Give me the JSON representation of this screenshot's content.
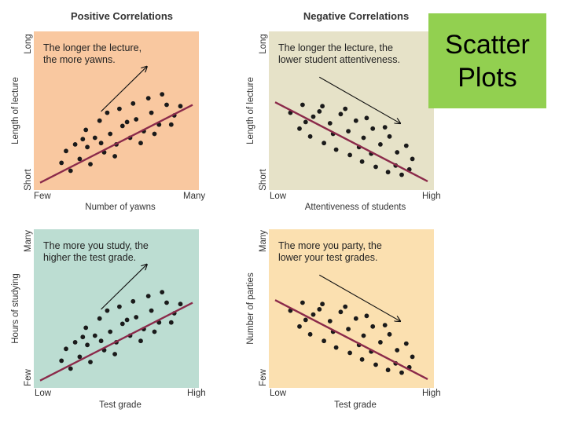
{
  "section_titles": {
    "positive": "Positive Correlations",
    "negative": "Negative Correlations"
  },
  "slide_title": {
    "line1": "Scatter",
    "line2": "Plots"
  },
  "chart_data": [
    {
      "type": "scatter",
      "id": "lecture-yawns",
      "annotation": [
        "The longer the lecture,",
        "the more yawns."
      ],
      "xlabel": "Number of yawns",
      "ylabel": "Length of lecture",
      "x_ticks": {
        "low": "Few",
        "high": "Many"
      },
      "y_ticks": {
        "low": "Short",
        "high": "Long"
      },
      "xlim": [
        0,
        10
      ],
      "ylim": [
        0,
        10
      ],
      "background": "#f9c8a0",
      "trend": {
        "x": [
          0,
          10
        ],
        "y": [
          0.2,
          6.1
        ]
      },
      "points": [
        [
          1.4,
          1.7
        ],
        [
          2.0,
          1.1
        ],
        [
          2.6,
          2.0
        ],
        [
          3.1,
          2.9
        ],
        [
          3.6,
          3.6
        ],
        [
          4.2,
          2.5
        ],
        [
          4.6,
          3.9
        ],
        [
          5.0,
          3.1
        ],
        [
          5.4,
          4.5
        ],
        [
          5.9,
          3.6
        ],
        [
          6.3,
          5.0
        ],
        [
          6.8,
          4.1
        ],
        [
          7.3,
          5.5
        ],
        [
          7.8,
          4.6
        ],
        [
          8.3,
          6.1
        ],
        [
          8.8,
          5.3
        ],
        [
          9.2,
          6.0
        ],
        [
          2.3,
          3.1
        ],
        [
          3.0,
          4.2
        ],
        [
          3.9,
          4.9
        ],
        [
          4.4,
          5.5
        ],
        [
          5.2,
          5.8
        ],
        [
          6.1,
          6.2
        ],
        [
          7.1,
          6.6
        ],
        [
          8.0,
          6.9
        ],
        [
          1.7,
          2.6
        ],
        [
          2.8,
          3.5
        ],
        [
          4.0,
          3.2
        ],
        [
          5.7,
          4.8
        ],
        [
          7.5,
          3.9
        ],
        [
          6.6,
          3.2
        ],
        [
          4.9,
          2.2
        ],
        [
          3.3,
          1.6
        ],
        [
          8.6,
          4.6
        ]
      ]
    },
    {
      "type": "scatter",
      "id": "lecture-attentiveness",
      "annotation": [
        "The longer the lecture, the",
        "lower student attentiveness."
      ],
      "xlabel": "Attentiveness of students",
      "ylabel": "Length of lecture",
      "x_ticks": {
        "low": "Low",
        "high": "High"
      },
      "y_ticks": {
        "low": "Short",
        "high": "Long"
      },
      "xlim": [
        0,
        10
      ],
      "ylim": [
        0,
        10
      ],
      "background": "#e6e2c8",
      "trend": {
        "x": [
          0,
          10
        ],
        "y": [
          6.3,
          0.3
        ]
      },
      "points": [
        [
          1.0,
          5.5
        ],
        [
          1.8,
          6.1
        ],
        [
          2.5,
          5.2
        ],
        [
          3.1,
          6.0
        ],
        [
          3.6,
          4.7
        ],
        [
          4.3,
          5.4
        ],
        [
          4.8,
          4.1
        ],
        [
          5.3,
          4.9
        ],
        [
          5.8,
          3.6
        ],
        [
          6.4,
          4.3
        ],
        [
          6.9,
          3.1
        ],
        [
          7.5,
          3.7
        ],
        [
          8.0,
          2.5
        ],
        [
          8.6,
          3.0
        ],
        [
          9.0,
          2.0
        ],
        [
          1.6,
          4.3
        ],
        [
          2.3,
          3.7
        ],
        [
          3.2,
          3.2
        ],
        [
          4.0,
          2.7
        ],
        [
          4.9,
          2.3
        ],
        [
          5.7,
          1.8
        ],
        [
          6.6,
          1.4
        ],
        [
          7.4,
          1.0
        ],
        [
          8.3,
          0.8
        ],
        [
          2.9,
          5.6
        ],
        [
          4.6,
          5.8
        ],
        [
          6.0,
          5.1
        ],
        [
          7.2,
          4.4
        ],
        [
          3.8,
          3.9
        ],
        [
          5.5,
          2.9
        ],
        [
          6.3,
          2.4
        ],
        [
          7.9,
          1.5
        ],
        [
          2.0,
          4.8
        ],
        [
          8.8,
          1.2
        ]
      ]
    },
    {
      "type": "scatter",
      "id": "study-grade",
      "annotation": [
        "The more you study, the",
        "higher the test grade."
      ],
      "xlabel": "Test grade",
      "ylabel": "Hours of studying",
      "x_ticks": {
        "low": "Low",
        "high": "High"
      },
      "y_ticks": {
        "low": "Few",
        "high": "Many"
      },
      "xlim": [
        0,
        10
      ],
      "ylim": [
        0,
        10
      ],
      "background": "#bcddd2",
      "trend": {
        "x": [
          0,
          10
        ],
        "y": [
          0.2,
          6.1
        ]
      },
      "points": [
        [
          1.4,
          1.7
        ],
        [
          2.0,
          1.1
        ],
        [
          2.6,
          2.0
        ],
        [
          3.1,
          2.9
        ],
        [
          3.6,
          3.6
        ],
        [
          4.2,
          2.5
        ],
        [
          4.6,
          3.9
        ],
        [
          5.0,
          3.1
        ],
        [
          5.4,
          4.5
        ],
        [
          5.9,
          3.6
        ],
        [
          6.3,
          5.0
        ],
        [
          6.8,
          4.1
        ],
        [
          7.3,
          5.5
        ],
        [
          7.8,
          4.6
        ],
        [
          8.3,
          6.1
        ],
        [
          8.8,
          5.3
        ],
        [
          9.2,
          6.0
        ],
        [
          2.3,
          3.1
        ],
        [
          3.0,
          4.2
        ],
        [
          3.9,
          4.9
        ],
        [
          4.4,
          5.5
        ],
        [
          5.2,
          5.8
        ],
        [
          6.1,
          6.2
        ],
        [
          7.1,
          6.6
        ],
        [
          8.0,
          6.9
        ],
        [
          1.7,
          2.6
        ],
        [
          2.8,
          3.5
        ],
        [
          4.0,
          3.2
        ],
        [
          5.7,
          4.8
        ],
        [
          7.5,
          3.9
        ],
        [
          6.6,
          3.2
        ],
        [
          4.9,
          2.2
        ],
        [
          3.3,
          1.6
        ],
        [
          8.6,
          4.6
        ]
      ]
    },
    {
      "type": "scatter",
      "id": "party-grade",
      "annotation": [
        "The more you party, the",
        "lower your test grades."
      ],
      "xlabel": "Test grade",
      "ylabel": "Number of parties",
      "x_ticks": {
        "low": "Low",
        "high": "High"
      },
      "y_ticks": {
        "low": "Few",
        "high": "Many"
      },
      "xlim": [
        0,
        10
      ],
      "ylim": [
        0,
        10
      ],
      "background": "#fbe0b0",
      "trend": {
        "x": [
          0,
          10
        ],
        "y": [
          6.3,
          0.3
        ]
      },
      "points": [
        [
          1.0,
          5.5
        ],
        [
          1.8,
          6.1
        ],
        [
          2.5,
          5.2
        ],
        [
          3.1,
          6.0
        ],
        [
          3.6,
          4.7
        ],
        [
          4.3,
          5.4
        ],
        [
          4.8,
          4.1
        ],
        [
          5.3,
          4.9
        ],
        [
          5.8,
          3.6
        ],
        [
          6.4,
          4.3
        ],
        [
          6.9,
          3.1
        ],
        [
          7.5,
          3.7
        ],
        [
          8.0,
          2.5
        ],
        [
          8.6,
          3.0
        ],
        [
          9.0,
          2.0
        ],
        [
          1.6,
          4.3
        ],
        [
          2.3,
          3.7
        ],
        [
          3.2,
          3.2
        ],
        [
          4.0,
          2.7
        ],
        [
          4.9,
          2.3
        ],
        [
          5.7,
          1.8
        ],
        [
          6.6,
          1.4
        ],
        [
          7.4,
          1.0
        ],
        [
          8.3,
          0.8
        ],
        [
          2.9,
          5.6
        ],
        [
          4.6,
          5.8
        ],
        [
          6.0,
          5.1
        ],
        [
          7.2,
          4.4
        ],
        [
          3.8,
          3.9
        ],
        [
          5.5,
          2.9
        ],
        [
          6.3,
          2.4
        ],
        [
          7.9,
          1.5
        ],
        [
          2.0,
          4.8
        ],
        [
          8.8,
          1.2
        ]
      ]
    }
  ]
}
